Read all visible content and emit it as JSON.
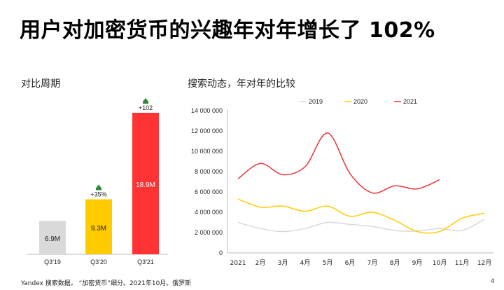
{
  "title": "用户对加密货币的兴趣年对年增长了 102%",
  "left_section_label": "对比周期",
  "right_section_label": "搜索动态，年对年的比较",
  "footer": "Yandex 搜索数据。 “加密货币”细分。2021年10月。俄罗斯",
  "page_number": "4",
  "colors": {
    "bar_2019": "#d9d9d9",
    "bar_2020": "#ffcc00",
    "bar_2021": "#ff3333",
    "up_arrow": "#2e8b2e",
    "line_2019": "#d9d9d9",
    "line_2020": "#ffcc00",
    "line_2021": "#ee3333"
  },
  "chart_data": [
    {
      "type": "bar",
      "categories": [
        "Q3'19",
        "Q3'20",
        "Q3'21"
      ],
      "values": [
        6.9,
        9.3,
        18.9
      ],
      "value_labels": [
        "6.9M",
        "9.3M",
        "18.9M"
      ],
      "growth_labels": [
        "",
        "+35%",
        "+102"
      ],
      "growth_icon": "up-arrow-icon",
      "ylim": [
        3.2,
        18.9
      ]
    },
    {
      "type": "line",
      "x": [
        "2021",
        "2月",
        "3月",
        "4月",
        "5月",
        "6月",
        "7月",
        "8月",
        "9月",
        "10月",
        "11月",
        "12月"
      ],
      "series": [
        {
          "name": "2019",
          "values": [
            3000000,
            2400000,
            2100000,
            2400000,
            3000000,
            2800000,
            2600000,
            2200000,
            2150000,
            2400000,
            2200000,
            3300000
          ]
        },
        {
          "name": "2020",
          "values": [
            5300000,
            4500000,
            4600000,
            4100000,
            4600000,
            3600000,
            4000000,
            3200000,
            2100000,
            2100000,
            3400000,
            3900000
          ]
        },
        {
          "name": "2021",
          "values": [
            7300000,
            8800000,
            7700000,
            8500000,
            11800000,
            7800000,
            5900000,
            6600000,
            6300000,
            7200000,
            null,
            null
          ]
        }
      ],
      "yticks": [
        "0",
        "2 000 000",
        "4 000 000",
        "6 000 000",
        "8 000 000",
        "10 000 000",
        "12 000 000",
        "14 000 000"
      ],
      "ylim": [
        0,
        14000000
      ],
      "legend_position": "top-center"
    }
  ]
}
